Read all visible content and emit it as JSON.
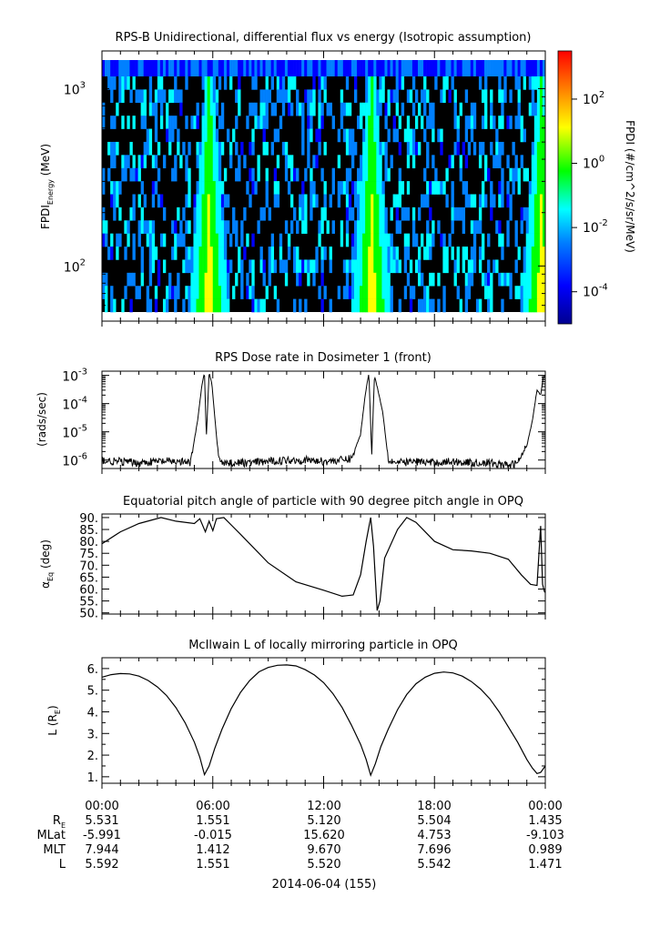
{
  "chart_data": [
    {
      "type": "heatmap",
      "title": "RPS-B  Unidirectional, differential flux vs energy (Isotropic assumption)",
      "ylabel_main": "FPDI",
      "ylabel_sub": "Energy",
      "ylabel_unit": " (MeV)",
      "y_scale": "log",
      "ylim": [
        55,
        1450
      ],
      "yticks": [
        {
          "base": "10",
          "exp": "2",
          "value": 100
        },
        {
          "base": "10",
          "exp": "3",
          "value": 1000
        }
      ],
      "xlim_hours": [
        0,
        24
      ],
      "colorbar": {
        "label": "FPDI (#/cm^2/s/sr/MeV)",
        "scale": "log",
        "range_exp": [
          -5,
          3.5
        ],
        "ticks": [
          {
            "base": "10",
            "exp": "2",
            "value": 2
          },
          {
            "base": "10",
            "exp": "0",
            "value": 0
          },
          {
            "base": "10",
            "exp": "-2",
            "value": -2
          },
          {
            "base": "10",
            "exp": "-4",
            "value": -4
          }
        ],
        "colors": [
          "#000090",
          "#0000ff",
          "#0080ff",
          "#00ffff",
          "#00ff00",
          "#ffff00",
          "#ff8000",
          "#ff0000"
        ]
      },
      "radiation_belt_passes_hours": [
        5.8,
        14.6,
        23.8
      ]
    },
    {
      "type": "line",
      "title": "RPS  Dose rate in Dosimeter 1 (front)",
      "ylabel": "(rads/sec)",
      "y_scale": "log",
      "ylim_exp": [
        -6.3,
        -2.85
      ],
      "yticks": [
        {
          "base": "10",
          "exp": "-3",
          "value": -3
        },
        {
          "base": "10",
          "exp": "-4",
          "value": -4
        },
        {
          "base": "10",
          "exp": "-5",
          "value": -5
        },
        {
          "base": "10",
          "exp": "-6",
          "value": -6
        }
      ],
      "series": [
        {
          "x_hours": [
            0,
            0.5,
            1,
            2,
            3,
            4,
            4.8,
            5.2,
            5.4,
            5.55,
            5.65,
            5.8,
            5.95,
            6.1,
            6.3,
            6.6,
            7,
            8,
            9,
            10,
            11,
            12,
            13,
            13.5,
            14.0,
            14.25,
            14.45,
            14.6,
            14.75,
            14.9,
            15.2,
            15.5,
            16,
            17,
            18,
            19,
            20,
            21,
            22,
            22.5,
            23.0,
            23.3,
            23.55,
            23.75,
            23.9,
            24.0
          ],
          "y_log10": [
            -6.0,
            -6.05,
            -6.05,
            -6.1,
            -6.05,
            -6.05,
            -6.1,
            -4.5,
            -3.4,
            -2.9,
            -5.2,
            -2.9,
            -3.3,
            -4.4,
            -5.9,
            -6.1,
            -6.1,
            -6.1,
            -6.05,
            -6.0,
            -6.0,
            -6.05,
            -6.0,
            -5.95,
            -5.1,
            -3.7,
            -2.9,
            -5.8,
            -3.0,
            -3.4,
            -4.3,
            -6.0,
            -6.1,
            -6.05,
            -6.1,
            -6.05,
            -6.1,
            -6.1,
            -6.2,
            -6.1,
            -5.5,
            -4.6,
            -3.5,
            -3.7,
            -3.05,
            -3.0
          ]
        }
      ]
    },
    {
      "type": "line",
      "title": "Equatorial pitch angle of particle with 90 degree pitch angle in OPQ",
      "ylabel_main": "α",
      "ylabel_sub": "Eq",
      "ylabel_unit": " (deg)",
      "ylim": [
        49.5,
        91.5
      ],
      "yticks": [
        90,
        85,
        80,
        75,
        70,
        65,
        60,
        55,
        50
      ],
      "ytick_labels": [
        "90.",
        "85.",
        "80.",
        "75.",
        "70.",
        "65.",
        "60.",
        "55.",
        "50."
      ],
      "series": [
        {
          "x_hours": [
            0,
            1,
            2,
            3.2,
            4.0,
            5.0,
            5.3,
            5.6,
            5.8,
            6.0,
            6.2,
            6.6,
            7.5,
            9,
            10.5,
            12,
            13.0,
            13.6,
            14.0,
            14.3,
            14.55,
            14.7,
            14.9,
            15.05,
            15.3,
            16.0,
            16.5,
            17.0,
            18,
            19,
            20,
            21,
            22,
            22.7,
            23.2,
            23.55,
            23.75,
            23.85,
            23.95,
            24.0
          ],
          "y": [
            79,
            84,
            87.5,
            90,
            88.5,
            87.5,
            89.5,
            84,
            88.5,
            84.5,
            89.5,
            90,
            83,
            71,
            63,
            59.5,
            57,
            57.5,
            66,
            80,
            90,
            78,
            51,
            55,
            73,
            85,
            90,
            88,
            80,
            76.5,
            76,
            75,
            72.5,
            66,
            62,
            61.5,
            86.5,
            62,
            59,
            58.5
          ]
        }
      ]
    },
    {
      "type": "line",
      "title": "McIlwain L of locally mirroring particle in OPQ",
      "ylabel_main": "L (R",
      "ylabel_sub": "E",
      "ylabel_unit": ")",
      "ylim": [
        0.7,
        6.5
      ],
      "yticks": [
        1,
        2,
        3,
        4,
        5,
        6
      ],
      "ytick_labels": [
        "1.",
        "2.",
        "3.",
        "4.",
        "5.",
        "6."
      ],
      "series": [
        {
          "x_hours": [
            0,
            0.5,
            1,
            1.5,
            2,
            2.5,
            3,
            3.5,
            4,
            4.5,
            5,
            5.3,
            5.55,
            5.8,
            6.1,
            6.5,
            7,
            7.5,
            8,
            8.5,
            9,
            9.5,
            10,
            10.5,
            11,
            11.5,
            12,
            12.5,
            13,
            13.5,
            14,
            14.3,
            14.55,
            14.8,
            15.1,
            15.5,
            16,
            16.5,
            17,
            17.5,
            18,
            18.5,
            19,
            19.5,
            20,
            20.5,
            21,
            21.5,
            22,
            22.5,
            23,
            23.3,
            23.55,
            23.75,
            24.0
          ],
          "y": [
            5.6,
            5.72,
            5.77,
            5.75,
            5.65,
            5.45,
            5.15,
            4.75,
            4.2,
            3.5,
            2.6,
            1.9,
            1.1,
            1.5,
            2.3,
            3.2,
            4.15,
            4.9,
            5.45,
            5.85,
            6.05,
            6.15,
            6.17,
            6.12,
            5.95,
            5.7,
            5.35,
            4.85,
            4.2,
            3.4,
            2.5,
            1.8,
            1.07,
            1.6,
            2.4,
            3.2,
            4.1,
            4.8,
            5.3,
            5.6,
            5.78,
            5.84,
            5.8,
            5.65,
            5.4,
            5.05,
            4.6,
            4.0,
            3.3,
            2.6,
            1.8,
            1.4,
            1.15,
            1.2,
            1.5
          ]
        }
      ]
    }
  ],
  "time_axis": {
    "tick_labels": [
      "00:00",
      "06:00",
      "12:00",
      "18:00",
      "00:00"
    ],
    "date_label": "2014-06-04 (155)",
    "rows": [
      {
        "label_main": "R",
        "label_sub": "E",
        "values": [
          "5.531",
          "1.551",
          "5.120",
          "5.504",
          "1.435"
        ]
      },
      {
        "label_main": "MLat",
        "label_sub": "",
        "values": [
          "-5.991",
          "-0.015",
          "15.620",
          "4.753",
          "-9.103"
        ]
      },
      {
        "label_main": "MLT",
        "label_sub": "",
        "values": [
          "7.944",
          "1.412",
          "9.670",
          "7.696",
          "0.989"
        ]
      },
      {
        "label_main": "L",
        "label_sub": "",
        "values": [
          "5.592",
          "1.551",
          "5.520",
          "5.542",
          "1.471"
        ]
      }
    ]
  }
}
